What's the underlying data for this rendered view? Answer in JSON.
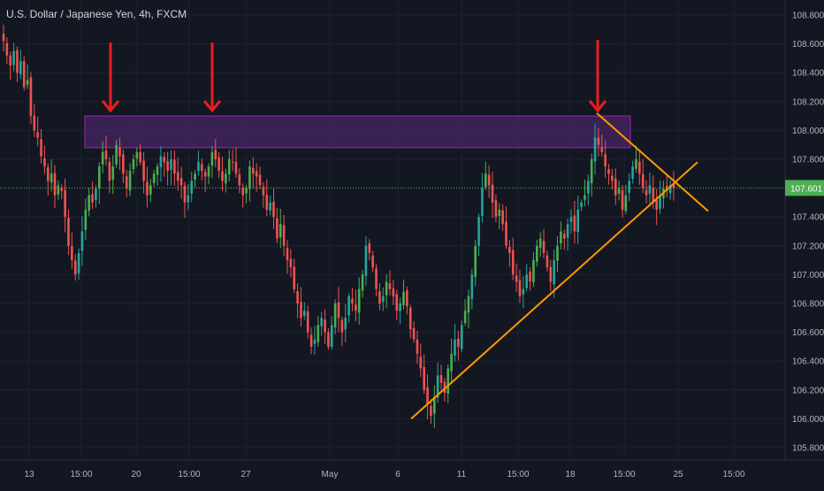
{
  "header": {
    "title": "U.S. Dollar / Japanese Yen, 4h, FXCM"
  },
  "colors": {
    "background": "#131722",
    "up_candle": "#26a69a",
    "up_candle_bright": "#4caf50",
    "down_candle": "#ef5350",
    "zone_fill": "#5b2a7e",
    "zone_border": "#9c27b0",
    "trendline": "#ff9800",
    "arrow": "#e81e1e",
    "price_line": "#4caf50",
    "price_badge": "#4caf50"
  },
  "chart_data": {
    "type": "candlestick",
    "symbol": "U.S. Dollar / Japanese Yen",
    "interval": "4h",
    "source": "FXCM",
    "ylim": [
      105.76,
      108.88
    ],
    "y_ticks": [
      "108.800",
      "108.600",
      "108.400",
      "108.200",
      "108.000",
      "107.800",
      "107.600",
      "107.400",
      "107.200",
      "107.000",
      "106.800",
      "106.600",
      "106.400",
      "106.200",
      "106.000",
      "105.800"
    ],
    "x_ticks": [
      "13",
      "15:00",
      "20",
      "15:00",
      "27",
      "May",
      "6",
      "11",
      "15:00",
      "18",
      "15:00",
      "25",
      "15:00"
    ],
    "last_price": "107.601",
    "resistance_zone": {
      "low": 107.88,
      "high": 108.1
    },
    "support_trendline": {
      "from": 106.0,
      "to": 107.78
    },
    "descending_trendline": {
      "from": 108.12,
      "to": 107.44
    },
    "candles_close": [
      108.62,
      108.52,
      108.45,
      108.55,
      108.4,
      108.48,
      108.3,
      108.35,
      108.1,
      108.0,
      107.95,
      107.82,
      107.75,
      107.65,
      107.7,
      107.55,
      107.62,
      107.58,
      107.4,
      107.2,
      107.1,
      107.0,
      107.15,
      107.3,
      107.45,
      107.55,
      107.5,
      107.6,
      107.75,
      107.85,
      107.8,
      107.65,
      107.75,
      107.9,
      107.82,
      107.7,
      107.6,
      107.72,
      107.8,
      107.85,
      107.78,
      107.65,
      107.55,
      107.62,
      107.7,
      107.75,
      107.82,
      107.78,
      107.72,
      107.8,
      107.7,
      107.65,
      107.62,
      107.5,
      107.55,
      107.65,
      107.7,
      107.78,
      107.72,
      107.68,
      107.75,
      107.85,
      107.8,
      107.72,
      107.65,
      107.7,
      107.8,
      107.78,
      107.7,
      107.62,
      107.55,
      107.6,
      107.75,
      107.7,
      107.68,
      107.62,
      107.55,
      107.45,
      107.5,
      107.4,
      107.25,
      107.35,
      107.2,
      107.1,
      107.05,
      106.9,
      106.8,
      106.7,
      106.75,
      106.6,
      106.5,
      106.55,
      106.65,
      106.7,
      106.6,
      106.5,
      106.65,
      106.8,
      106.7,
      106.6,
      106.7,
      106.85,
      106.8,
      106.75,
      106.9,
      107.0,
      107.2,
      107.15,
      107.05,
      106.9,
      106.8,
      106.85,
      106.95,
      106.9,
      106.85,
      106.75,
      106.8,
      106.88,
      106.78,
      106.62,
      106.55,
      106.45,
      106.35,
      106.2,
      106.1,
      106.02,
      106.15,
      106.3,
      106.25,
      106.18,
      106.35,
      106.45,
      106.55,
      106.5,
      106.65,
      106.75,
      106.85,
      107.0,
      107.2,
      107.4,
      107.6,
      107.7,
      107.62,
      107.5,
      107.4,
      107.45,
      107.35,
      107.2,
      107.15,
      107.0,
      106.95,
      106.85,
      106.9,
      107.0,
      106.95,
      107.1,
      107.2,
      107.25,
      107.15,
      107.05,
      106.95,
      107.1,
      107.2,
      107.3,
      107.25,
      107.35,
      107.4,
      107.3,
      107.45,
      107.5,
      107.55,
      107.65,
      107.8,
      107.95,
      107.9,
      107.85,
      107.75,
      107.7,
      107.65,
      107.55,
      107.6,
      107.45,
      107.55,
      107.65,
      107.75,
      107.8,
      107.7,
      107.6,
      107.55,
      107.62,
      107.5,
      107.45,
      107.55,
      107.6,
      107.58,
      107.62,
      107.6
    ]
  }
}
